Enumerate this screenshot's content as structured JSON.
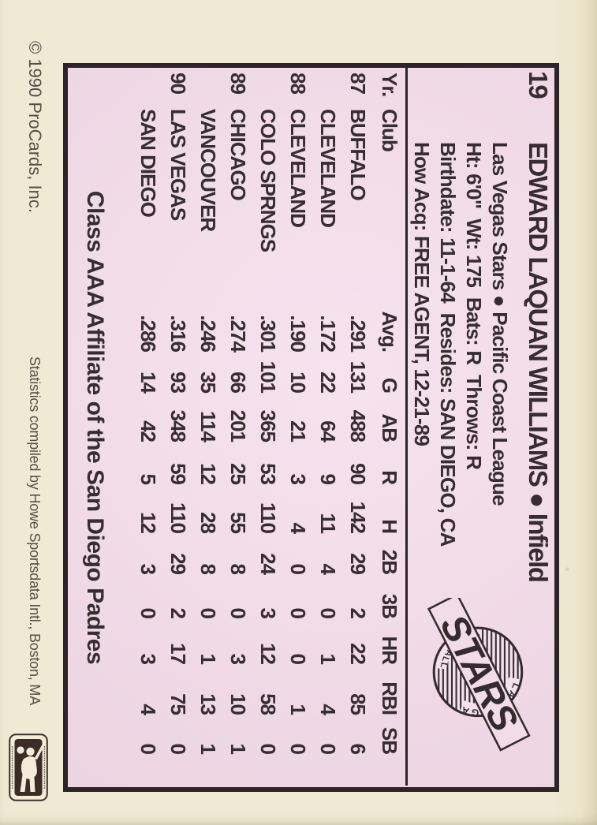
{
  "card": {
    "number": "19",
    "name": "EDWARD LAQUAN WILLIAMS",
    "bullet": "●",
    "position": "Infield",
    "team_line": "Las Vegas Stars ● Pacific Coast League",
    "physical_line": "Ht: 6'0\"  Wt: 175  Bats: R  Throws: R",
    "birth_line": "Birthdate: 11-1-64  Resides: SAN DIEGO, CA",
    "acquired_line": "How Acq: FREE AGENT, 12-21-89"
  },
  "table": {
    "headers": [
      "Yr.",
      "Club",
      "Avg.",
      "G",
      "AB",
      "R",
      "H",
      "2B",
      "3B",
      "HR",
      "RBI",
      "SB"
    ],
    "rows": [
      [
        "87",
        "BUFFALO",
        ".291",
        "131",
        "488",
        "90",
        "142",
        "29",
        "2",
        "22",
        "85",
        "6"
      ],
      [
        "",
        "CLEVELAND",
        ".172",
        "22",
        "64",
        "9",
        "11",
        "4",
        "0",
        "1",
        "4",
        "0"
      ],
      [
        "88",
        "CLEVELAND",
        ".190",
        "10",
        "21",
        "3",
        "4",
        "0",
        "0",
        "0",
        "1",
        "0"
      ],
      [
        "",
        "COLO SPRNGS",
        ".301",
        "101",
        "365",
        "53",
        "110",
        "24",
        "3",
        "12",
        "58",
        "0"
      ],
      [
        "89",
        "CHICAGO",
        ".274",
        "66",
        "201",
        "25",
        "55",
        "8",
        "0",
        "3",
        "10",
        "1"
      ],
      [
        "",
        "VANCOUVER",
        ".246",
        "35",
        "114",
        "12",
        "28",
        "8",
        "0",
        "1",
        "13",
        "1"
      ],
      [
        "90",
        "LAS VEGAS",
        ".316",
        "93",
        "348",
        "59",
        "110",
        "29",
        "2",
        "17",
        "75",
        "0"
      ],
      [
        "",
        "SAN DIEGO",
        ".286",
        "14",
        "42",
        "5",
        "12",
        "3",
        "0",
        "3",
        "4",
        "0"
      ]
    ]
  },
  "logo": {
    "top_arc": "LAS VEGAS",
    "main": "STARS",
    "bottom_arc": "BASEBALL CLUB"
  },
  "footer": {
    "affiliate": "Class AAA Affiliate of the San Diego Padres",
    "copyright": "© 1990 ProCards, Inc.",
    "statistics": "Statistics compiled by Howe Sportsdata Intl., Boston, MA"
  },
  "colors": {
    "card_pink": "#f1dbe7",
    "border_cream": "#f0ead4",
    "ink": "#372c31",
    "frame": "#2c2428"
  }
}
